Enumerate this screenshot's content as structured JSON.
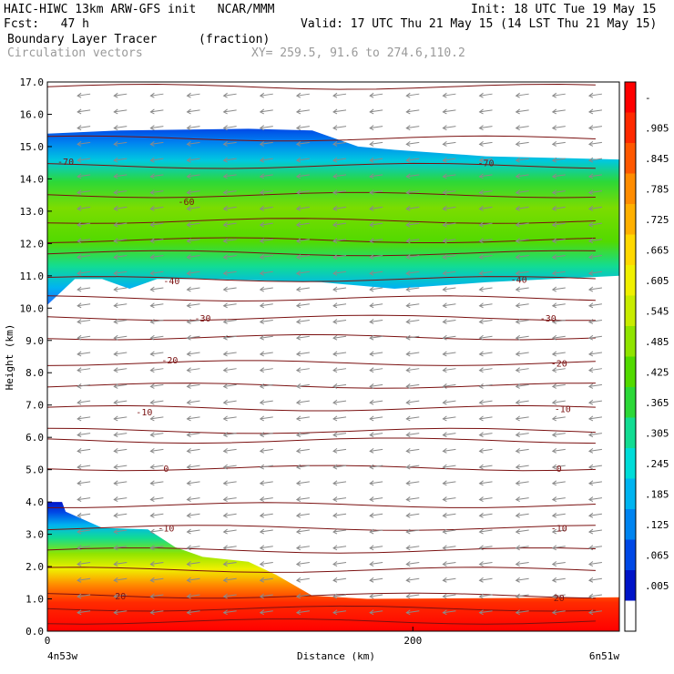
{
  "header": {
    "line1_left": "HAIC-HIWC 13km ARW-GFS init   NCAR/MMM",
    "line1_right": "Init: 18 UTC Tue 19 May 15",
    "line2_left": "Fcst:   47 h",
    "line2_right": "Valid: 17 UTC Thu 21 May 15 (14 LST Thu 21 May 15)",
    "field_name": "Boundary Layer Tracer",
    "field_units": "(fraction)",
    "vector_name": "Circulation vectors",
    "xy_text": "XY= 259.5, 91.6 to 274.6,110.2"
  },
  "chart_data": {
    "type": "heatmap",
    "title": "Boundary Layer Tracer",
    "xlabel": "Distance (km)",
    "ylabel": "Height (km)",
    "xlim": [
      0,
      313
    ],
    "ylim": [
      0,
      17
    ],
    "x_ticks": [
      "0",
      "200"
    ],
    "x_end_labels": [
      "4n53w",
      "6n51w"
    ],
    "y_ticks": [
      "0.0",
      "1.0",
      "2.0",
      "3.0",
      "4.0",
      "5.0",
      "6.0",
      "7.0",
      "8.0",
      "9.0",
      "10.0",
      "11.0",
      "12.0",
      "13.0",
      "14.0",
      "15.0",
      "16.0",
      "17.0"
    ],
    "colorbar_labels": [
      "-",
      ".905",
      ".845",
      ".785",
      ".725",
      ".665",
      ".605",
      ".545",
      ".485",
      ".425",
      ".365",
      ".305",
      ".245",
      ".185",
      ".125",
      ".065",
      ".005"
    ],
    "colorbar_colors": [
      "#ff0000",
      "#ff2a00",
      "#ff5800",
      "#ff8c00",
      "#ffb000",
      "#ffd800",
      "#f0f000",
      "#c8ec00",
      "#90e400",
      "#52da00",
      "#2cd838",
      "#12dc92",
      "#00dcd8",
      "#00b4f0",
      "#0084f0",
      "#0048e6",
      "#0014c8",
      "#ffffff"
    ],
    "contour_labels": [
      {
        "text": "-70",
        "x": 10,
        "y": 14.55
      },
      {
        "text": "-70",
        "x": 240,
        "y": 14.5
      },
      {
        "text": "-60",
        "x": 76,
        "y": 13.3
      },
      {
        "text": "-40",
        "x": 68,
        "y": 10.85
      },
      {
        "text": "-40",
        "x": 258,
        "y": 10.9
      },
      {
        "text": "-30",
        "x": 85,
        "y": 9.7
      },
      {
        "text": "-30",
        "x": 274,
        "y": 9.7
      },
      {
        "text": "-20",
        "x": 67,
        "y": 8.4
      },
      {
        "text": "-20",
        "x": 280,
        "y": 8.3
      },
      {
        "text": "-10",
        "x": 53,
        "y": 6.8
      },
      {
        "text": "-10",
        "x": 282,
        "y": 6.9
      },
      {
        "text": "0",
        "x": 65,
        "y": 5.05
      },
      {
        "text": "0",
        "x": 280,
        "y": 5.05
      },
      {
        "text": "-10",
        "x": 65,
        "y": 3.2
      },
      {
        "text": "-10",
        "x": 280,
        "y": 3.2
      },
      {
        "text": "20",
        "x": 40,
        "y": 1.1
      },
      {
        "text": "20",
        "x": 280,
        "y": 1.05
      }
    ]
  }
}
